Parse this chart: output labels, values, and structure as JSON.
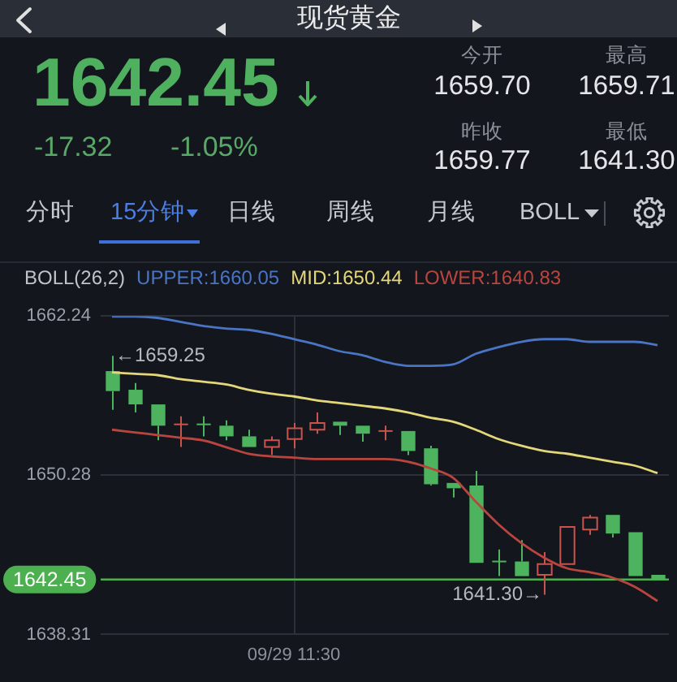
{
  "chart_data": {
    "type": "candlestick",
    "title": "现货黄金",
    "annotations": [
      "1642.45",
      "-17.32",
      "-1.05%",
      "今开",
      "1659.70",
      "最高",
      "1659.71",
      "昨收",
      "1659.77",
      "最低",
      "1641.30",
      "分时",
      "15分钟",
      "日线",
      "周线",
      "月线",
      "BOLL",
      "←1659.25",
      "1641.30→"
    ],
    "categories": [
      null,
      null,
      null,
      null,
      null,
      null,
      null,
      null,
      "09/29 11:30",
      null,
      null,
      null,
      null,
      null,
      null,
      null,
      null,
      null,
      null,
      null,
      null,
      null,
      null,
      null,
      null
    ],
    "ohlc": [
      [
        1658.1,
        1659.25,
        1655.2,
        1656.6
      ],
      [
        1656.7,
        1657.2,
        1655.0,
        1655.6
      ],
      [
        1655.6,
        1655.6,
        1652.9,
        1654.0
      ],
      [
        1654.1,
        1654.7,
        1652.4,
        1654.1
      ],
      [
        1654.1,
        1654.7,
        1653.2,
        1654.1
      ],
      [
        1654.0,
        1654.4,
        1652.9,
        1653.2
      ],
      [
        1653.2,
        1653.7,
        1652.4,
        1652.4
      ],
      [
        1652.4,
        1653.2,
        1651.8,
        1652.9
      ],
      [
        1653.0,
        1654.2,
        1652.3,
        1653.8
      ],
      [
        1653.7,
        1655.0,
        1653.4,
        1654.2
      ],
      [
        1654.3,
        1654.3,
        1653.3,
        1654.0
      ],
      [
        1654.0,
        1654.0,
        1652.8,
        1653.4
      ],
      [
        1653.6,
        1654.0,
        1652.9,
        1653.6
      ],
      [
        1653.6,
        1653.6,
        1651.8,
        1652.1
      ],
      [
        1652.3,
        1652.5,
        1649.5,
        1649.6
      ],
      [
        1649.7,
        1649.7,
        1648.6,
        1649.3
      ],
      [
        1649.5,
        1650.6,
        1643.7,
        1643.7
      ],
      [
        1643.8,
        1644.7,
        1642.7,
        1643.8
      ],
      [
        1643.8,
        1645.4,
        1642.7,
        1642.7
      ],
      [
        1642.8,
        1644.5,
        1641.3,
        1643.6
      ],
      [
        1643.6,
        1646.4,
        1643.6,
        1646.4
      ],
      [
        1646.2,
        1647.3,
        1645.8,
        1647.1
      ],
      [
        1647.3,
        1647.3,
        1645.6,
        1645.9
      ],
      [
        1646.0,
        1646.0,
        1642.7,
        1642.7
      ],
      [
        1642.8,
        1642.8,
        1642.45,
        1642.45
      ]
    ],
    "colors": [
      "#4db35e",
      "#4db35e",
      "#4db35e",
      "#c9534d",
      "#4db35e",
      "#4db35e",
      "#4db35e",
      "#c9534d",
      "#c9534d",
      "#c9534d",
      "#4db35e",
      "#4db35e",
      "#c9534d",
      "#4db35e",
      "#4db35e",
      "#4db35e",
      "#4db35e",
      "#4db35e",
      "#4db35e",
      "#c9534d",
      "#c9534d",
      "#c9534d",
      "#4db35e",
      "#4db35e",
      "#4db35e"
    ],
    "legend_title": "BOLL(26,2)",
    "series": [
      {
        "name": "UPPER:1660.05",
        "type": "line",
        "color": "#4a74c4",
        "values": [
          1662.2,
          1662.2,
          1662.1,
          1661.8,
          1661.5,
          1661.3,
          1661.2,
          1660.9,
          1660.5,
          1660.1,
          1659.6,
          1659.3,
          1658.8,
          1658.5,
          1658.5,
          1658.6,
          1659.4,
          1659.9,
          1660.3,
          1660.5,
          1660.5,
          1660.3,
          1660.3,
          1660.3,
          1660.05
        ]
      },
      {
        "name": "MID:1650.44",
        "type": "line",
        "color": "#e3d77a",
        "values": [
          1658.0,
          1657.9,
          1657.8,
          1657.5,
          1657.3,
          1657.1,
          1656.7,
          1656.4,
          1656.2,
          1655.9,
          1655.7,
          1655.5,
          1655.3,
          1655.0,
          1654.6,
          1654.3,
          1653.7,
          1653.0,
          1652.5,
          1652.1,
          1651.9,
          1651.6,
          1651.3,
          1651.0,
          1650.44
        ]
      },
      {
        "name": "LOWER:1640.83",
        "type": "line",
        "color": "#b8463f",
        "values": [
          1653.7,
          1653.5,
          1653.3,
          1653.1,
          1652.9,
          1652.4,
          1651.9,
          1651.7,
          1651.6,
          1651.5,
          1651.5,
          1651.5,
          1651.5,
          1651.3,
          1650.8,
          1650.1,
          1648.3,
          1646.6,
          1645.2,
          1644.1,
          1643.3,
          1643.0,
          1642.6,
          1641.9,
          1640.83
        ]
      }
    ],
    "legend": "top left",
    "ylim": [
      1638.31,
      1662.24
    ],
    "yticks": [
      1638.31,
      1650.28,
      1662.24
    ],
    "grid": true,
    "ref_lines": [
      {
        "axis": "y",
        "value": 1642.45,
        "label": "1642.45",
        "color": "#4caf50"
      }
    ]
  }
}
